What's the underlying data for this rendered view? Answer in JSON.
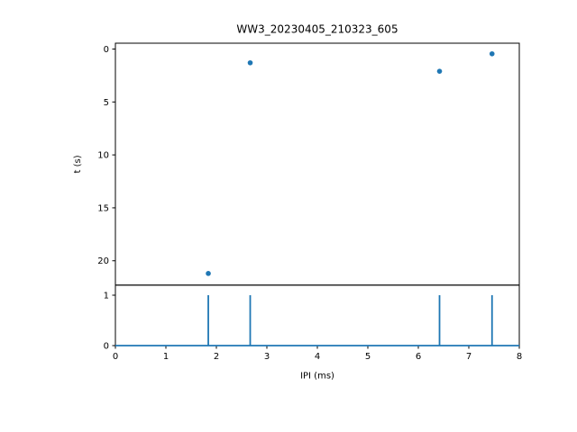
{
  "figure": {
    "title": "WW3_20230405_210323_605",
    "background": "#ffffff",
    "axis_color": "#000000",
    "accent_color": "#1f77b4"
  },
  "chart_data": [
    {
      "type": "scatter",
      "panel": "top",
      "title": "WW3_20230405_210323_605",
      "xlabel": "",
      "ylabel": "t (s)",
      "x": [
        1.84,
        2.67,
        6.42,
        7.46
      ],
      "y": [
        21.2,
        1.3,
        2.1,
        0.45
      ],
      "xlim": [
        0,
        8
      ],
      "ylim": [
        -0.55,
        22.3
      ],
      "invert_y": true,
      "xticks": [
        0,
        1,
        2,
        3,
        4,
        5,
        6,
        7,
        8
      ],
      "show_xtick_labels": false,
      "yticks": [
        0,
        5,
        10,
        15,
        20
      ],
      "marker_color": "#1f77b4",
      "grid": false,
      "legend": null
    },
    {
      "type": "vlines",
      "panel": "bottom",
      "title": "",
      "xlabel": "IPI (ms)",
      "ylabel": "",
      "x": [
        1.84,
        2.67,
        6.42,
        7.46
      ],
      "values": [
        1,
        1,
        1,
        1
      ],
      "baseline": 0,
      "xlim": [
        0,
        8
      ],
      "ylim": [
        0,
        1.2
      ],
      "invert_y": false,
      "xticks": [
        0,
        1,
        2,
        3,
        4,
        5,
        6,
        7,
        8
      ],
      "show_xtick_labels": true,
      "yticks": [
        0,
        1
      ],
      "line_color": "#1f77b4",
      "grid": false,
      "legend": null
    }
  ]
}
